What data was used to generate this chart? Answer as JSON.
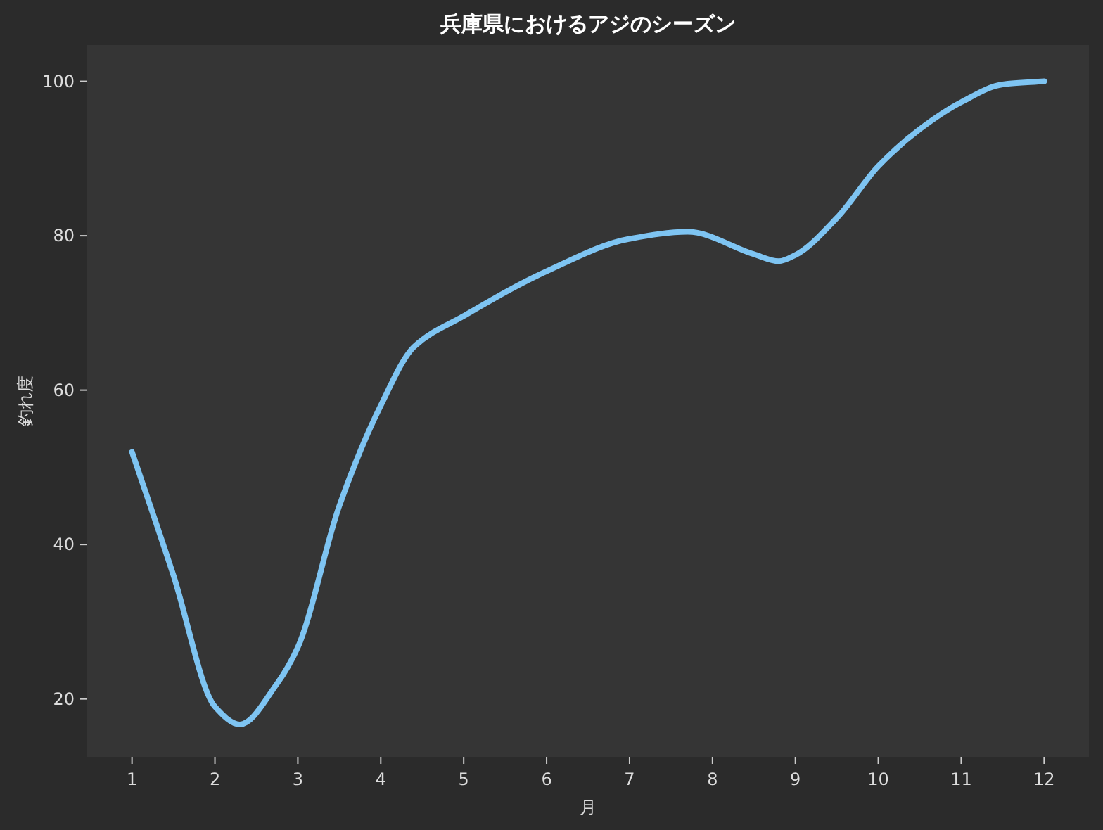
{
  "chart_data": {
    "type": "line",
    "title": "兵庫県におけるアジのシーズン",
    "xlabel": "月",
    "ylabel": "釣れ度",
    "x": [
      1,
      1.5,
      2,
      2.3,
      2.75,
      3,
      3.5,
      4,
      4.4,
      5,
      6,
      7,
      7.7,
      8.5,
      8.8,
      9,
      9.5,
      10,
      10.5,
      11,
      11.5,
      12
    ],
    "series": [
      {
        "color": "#7ec4f2",
        "values": [
          52,
          36,
          19,
          16.7,
          22,
          26.7,
          45,
          58,
          65.6,
          69.6,
          75.4,
          79.6,
          80.5,
          77.6,
          76.7,
          77.5,
          82.3,
          89,
          93.8,
          97.3,
          99.6,
          100
        ]
      }
    ],
    "xlim": [
      0.46,
      12.54
    ],
    "ylim": [
      12.5,
      104.7
    ],
    "xticks": [
      1,
      2,
      3,
      4,
      5,
      6,
      7,
      8,
      9,
      10,
      11,
      12
    ],
    "yticks": [
      20,
      40,
      60,
      80,
      100
    ],
    "grid": false,
    "marker": "none",
    "line_style": "solid"
  }
}
